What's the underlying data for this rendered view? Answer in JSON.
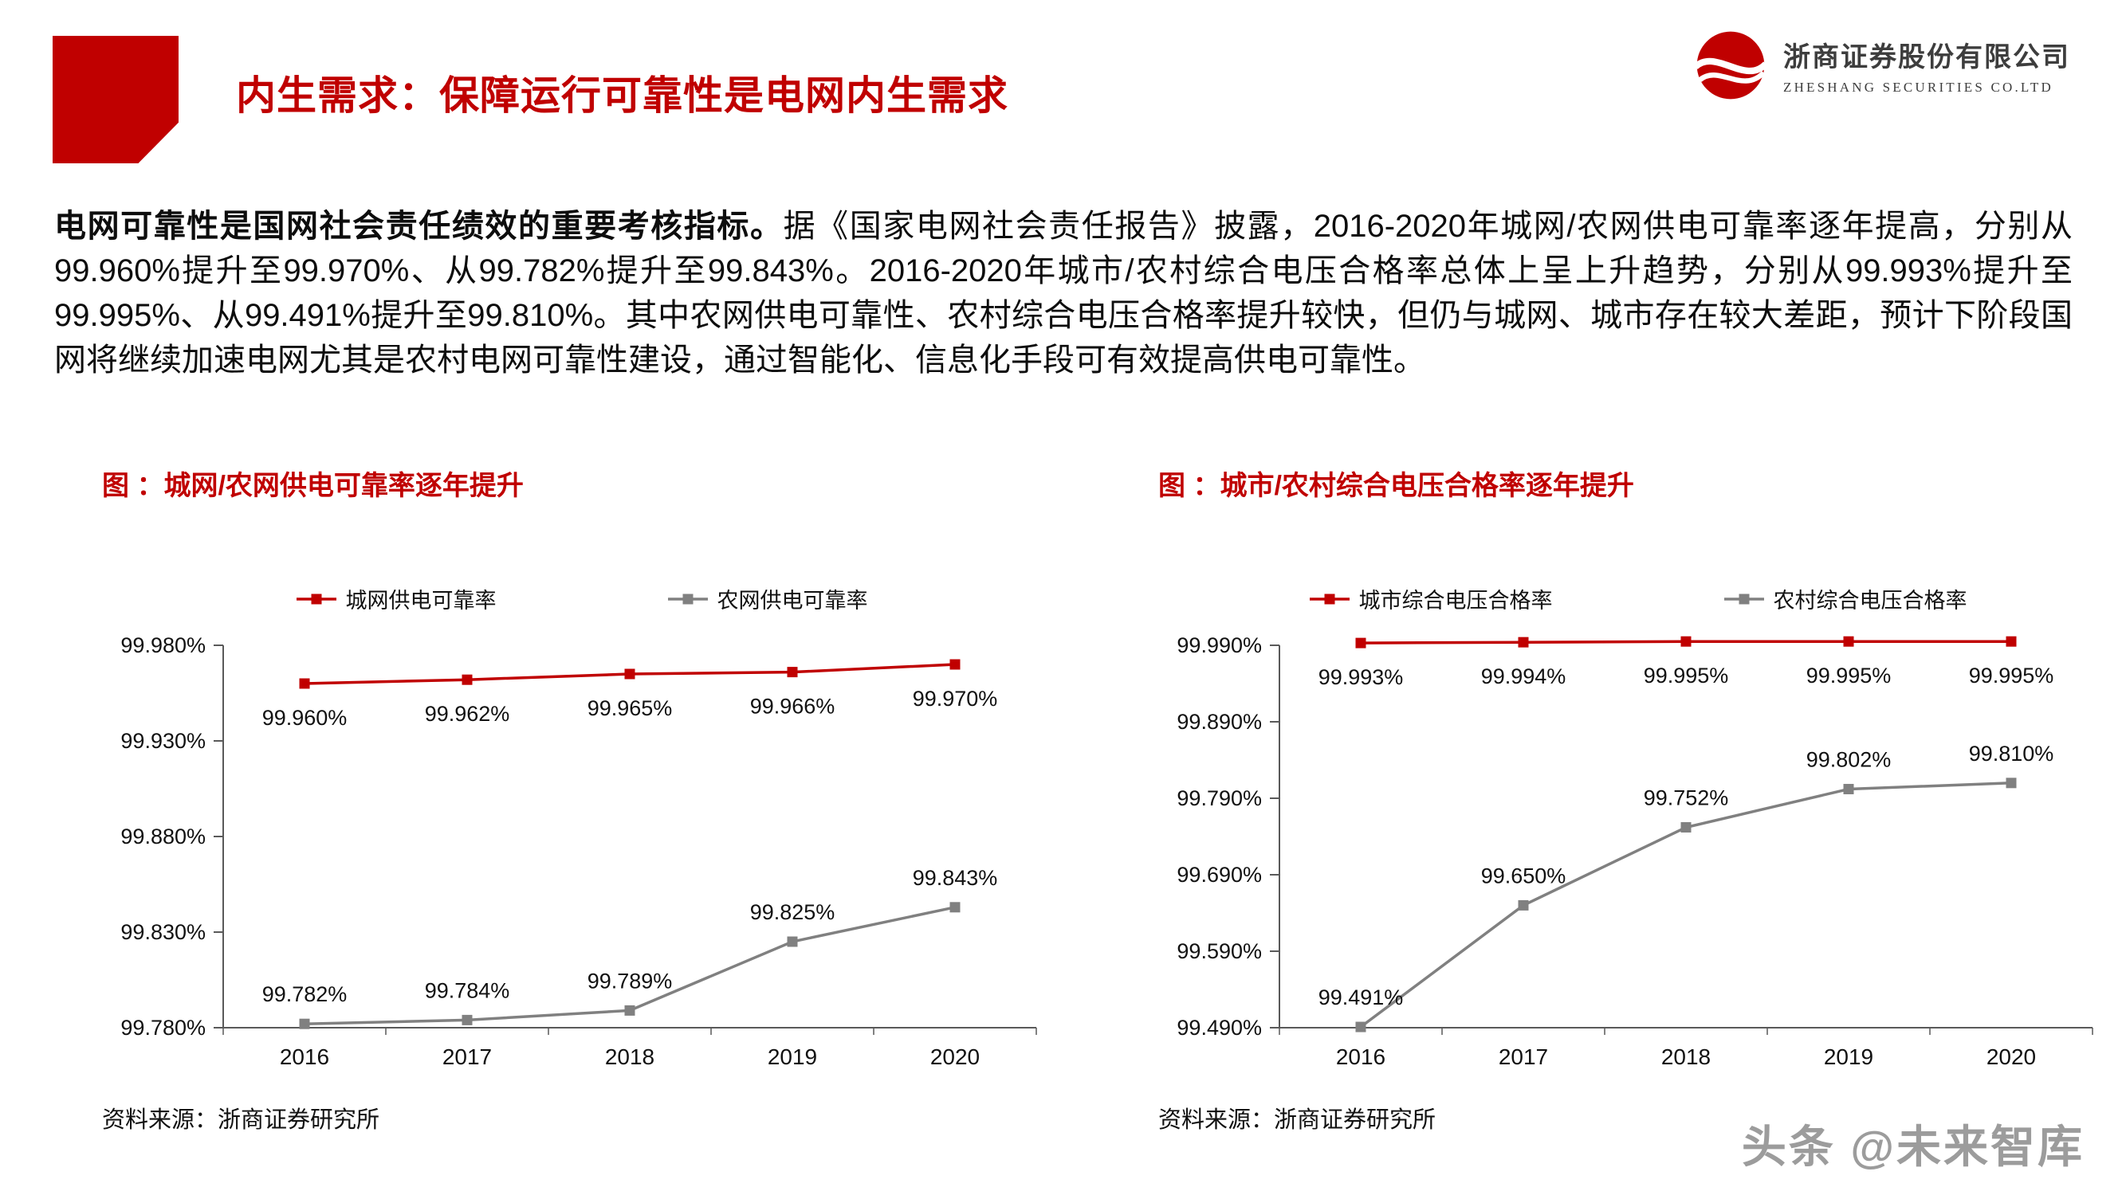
{
  "header": {
    "title": "内生需求：保障运行可靠性是电网内生需求",
    "brand": {
      "company_name": "浙商证券股份有限公司",
      "company_name_en": "ZHESHANG SECURITIES CO.LTD"
    }
  },
  "body": {
    "lead_bold": "电网可靠性是国网社会责任绩效的重要考核指标。",
    "rest": "据《国家电网社会责任报告》披露，2016-2020年城网/农网供电可靠率逐年提高，分别从99.960%提升至99.970%、从99.782%提升至99.843%。2016-2020年城市/农村综合电压合格率总体上呈上升趋势，分别从99.993%提升至99.995%、从99.491%提升至99.810%。其中农网供电可靠性、农村综合电压合格率提升较快，但仍与城网、城市存在较大差距，预计下阶段国网将继续加速电网尤其是农村电网可靠性建设，通过智能化、信息化手段可有效提高供电可靠性。"
  },
  "colors": {
    "accent_red": "#C00000",
    "series_gray": "#808080",
    "axis_gray": "#595959",
    "watermark_gray": "#9C9C9C"
  },
  "chart_data": [
    {
      "type": "line",
      "title": "图 ：城网/农网供电可靠率逐年提升",
      "categories": [
        "2016",
        "2017",
        "2018",
        "2019",
        "2020"
      ],
      "series": [
        {
          "name": "城网供电可靠率",
          "color": "#C00000",
          "values": [
            99.96,
            99.962,
            99.965,
            99.966,
            99.97
          ],
          "point_labels": [
            "99.960%",
            "99.962%",
            "99.965%",
            "99.966%",
            "99.970%"
          ],
          "label_position": "below",
          "marker": "square"
        },
        {
          "name": "农网供电可靠率",
          "color": "#808080",
          "values": [
            99.782,
            99.784,
            99.789,
            99.825,
            99.843
          ],
          "point_labels": [
            "99.782%",
            "99.784%",
            "99.789%",
            "99.825%",
            "99.843%"
          ],
          "label_position": "above",
          "marker": "square"
        }
      ],
      "ylim": [
        99.78,
        99.98
      ],
      "yticks": [
        {
          "value": 99.98,
          "label": "99.980%"
        },
        {
          "value": 99.93,
          "label": "99.930%"
        },
        {
          "value": 99.88,
          "label": "99.880%"
        },
        {
          "value": 99.83,
          "label": "99.830%"
        },
        {
          "value": 99.78,
          "label": "99.780%"
        }
      ],
      "xlabel": "",
      "ylabel": "",
      "grid": false,
      "legend_position": "top",
      "source": "资料来源：浙商证券研究所"
    },
    {
      "type": "line",
      "title": "图 ：城市/农村综合电压合格率逐年提升",
      "categories": [
        "2016",
        "2017",
        "2018",
        "2019",
        "2020"
      ],
      "series": [
        {
          "name": "城市综合电压合格率",
          "color": "#C00000",
          "values": [
            99.993,
            99.994,
            99.995,
            99.995,
            99.995
          ],
          "point_labels": [
            "99.993%",
            "99.994%",
            "99.995%",
            "99.995%",
            "99.995%"
          ],
          "label_position": "below",
          "marker": "square"
        },
        {
          "name": "农村综合电压合格率",
          "color": "#808080",
          "values": [
            99.491,
            99.65,
            99.752,
            99.802,
            99.81
          ],
          "point_labels": [
            "99.491%",
            "99.650%",
            "99.752%",
            "99.802%",
            "99.810%"
          ],
          "label_position": "above",
          "marker": "square"
        }
      ],
      "ylim": [
        99.49,
        99.99
      ],
      "yticks": [
        {
          "value": 99.99,
          "label": "99.990%"
        },
        {
          "value": 99.89,
          "label": "99.890%"
        },
        {
          "value": 99.79,
          "label": "99.790%"
        },
        {
          "value": 99.69,
          "label": "99.690%"
        },
        {
          "value": 99.59,
          "label": "99.590%"
        },
        {
          "value": 99.49,
          "label": "99.490%"
        }
      ],
      "xlabel": "",
      "ylabel": "",
      "grid": false,
      "legend_position": "top",
      "source": "资料来源：浙商证券研究所"
    }
  ],
  "footer": {
    "watermark": "头条 @未来智库"
  }
}
